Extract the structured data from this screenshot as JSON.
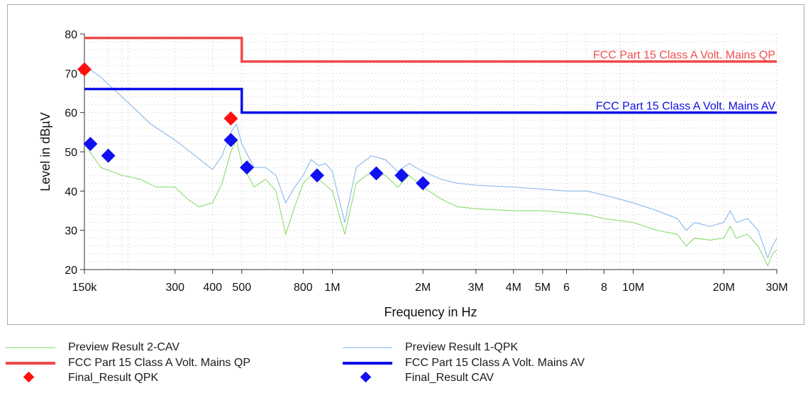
{
  "chart_data": {
    "type": "line",
    "x_scale": "log",
    "xlim_hz": [
      150000,
      30000000
    ],
    "ylim": [
      20,
      80
    ],
    "xlabel": "Frequency in Hz",
    "ylabel": "Level in dBµV",
    "grid": true,
    "y_ticks": [
      20,
      30,
      40,
      50,
      60,
      70,
      80
    ],
    "x_ticks": [
      {
        "hz": 150000,
        "label": "150k"
      },
      {
        "hz": 300000,
        "label": "300"
      },
      {
        "hz": 400000,
        "label": "400"
      },
      {
        "hz": 500000,
        "label": "500"
      },
      {
        "hz": 800000,
        "label": "800"
      },
      {
        "hz": 1000000,
        "label": "1M"
      },
      {
        "hz": 2000000,
        "label": "2M"
      },
      {
        "hz": 3000000,
        "label": "3M"
      },
      {
        "hz": 4000000,
        "label": "4M"
      },
      {
        "hz": 5000000,
        "label": "5M"
      },
      {
        "hz": 6000000,
        "label": "6"
      },
      {
        "hz": 8000000,
        "label": "8"
      },
      {
        "hz": 10000000,
        "label": "10M"
      },
      {
        "hz": 20000000,
        "label": "20M"
      },
      {
        "hz": 30000000,
        "label": "30M"
      }
    ],
    "limit_labels": [
      {
        "series": "qp_limit",
        "text": "FCC Part 15 Class A Volt. Mains QP",
        "color": "#f05050"
      },
      {
        "series": "av_limit",
        "text": "FCC Part 15 Class A Volt. Mains AV",
        "color": "#1010e0"
      }
    ],
    "series": {
      "qp_limit": {
        "name": "FCC Part 15 Class A Volt. Mains QP",
        "color": "#f04848",
        "points": [
          [
            150000,
            79
          ],
          [
            500000,
            79
          ],
          [
            500000,
            73
          ],
          [
            30000000,
            73
          ]
        ]
      },
      "av_limit": {
        "name": "FCC Part 15 Class A Volt. Mains AV",
        "color": "#0a10e8",
        "points": [
          [
            150000,
            66
          ],
          [
            500000,
            66
          ],
          [
            500000,
            60
          ],
          [
            30000000,
            60
          ]
        ]
      },
      "preview_qpk": {
        "name": "Preview Result 1-QPK",
        "color": "#7fb2e8",
        "points": [
          [
            150000,
            72
          ],
          [
            170000,
            69
          ],
          [
            200000,
            64
          ],
          [
            250000,
            57
          ],
          [
            300000,
            53
          ],
          [
            350000,
            49
          ],
          [
            400000,
            45.5
          ],
          [
            430000,
            49
          ],
          [
            460000,
            55
          ],
          [
            480000,
            57
          ],
          [
            500000,
            52
          ],
          [
            550000,
            46
          ],
          [
            600000,
            46
          ],
          [
            650000,
            44
          ],
          [
            700000,
            37
          ],
          [
            750000,
            41
          ],
          [
            800000,
            44
          ],
          [
            850000,
            48
          ],
          [
            900000,
            46.5
          ],
          [
            950000,
            47
          ],
          [
            1000000,
            45
          ],
          [
            1100000,
            32
          ],
          [
            1200000,
            46
          ],
          [
            1350000,
            49
          ],
          [
            1500000,
            48
          ],
          [
            1650000,
            45
          ],
          [
            1800000,
            47
          ],
          [
            2000000,
            45
          ],
          [
            2300000,
            43
          ],
          [
            2600000,
            42
          ],
          [
            3000000,
            41.5
          ],
          [
            4000000,
            41
          ],
          [
            5000000,
            40.5
          ],
          [
            6000000,
            40
          ],
          [
            7000000,
            40
          ],
          [
            8000000,
            39
          ],
          [
            10000000,
            37
          ],
          [
            12000000,
            35
          ],
          [
            14000000,
            33
          ],
          [
            15000000,
            30
          ],
          [
            16000000,
            32
          ],
          [
            18000000,
            31
          ],
          [
            20000000,
            32
          ],
          [
            21000000,
            35
          ],
          [
            22000000,
            32
          ],
          [
            24000000,
            33
          ],
          [
            26000000,
            30
          ],
          [
            28000000,
            23
          ],
          [
            29000000,
            26
          ],
          [
            30000000,
            28
          ]
        ]
      },
      "preview_cav": {
        "name": "Preview Result 2-CAV",
        "color": "#7fd860",
        "points": [
          [
            150000,
            52
          ],
          [
            170000,
            46
          ],
          [
            200000,
            44
          ],
          [
            230000,
            43
          ],
          [
            260000,
            41
          ],
          [
            300000,
            41
          ],
          [
            330000,
            38
          ],
          [
            360000,
            36
          ],
          [
            400000,
            37
          ],
          [
            430000,
            42
          ],
          [
            460000,
            50
          ],
          [
            480000,
            53
          ],
          [
            500000,
            47
          ],
          [
            550000,
            41
          ],
          [
            600000,
            43
          ],
          [
            650000,
            40
          ],
          [
            700000,
            29
          ],
          [
            750000,
            36
          ],
          [
            800000,
            42
          ],
          [
            850000,
            44
          ],
          [
            900000,
            43
          ],
          [
            1000000,
            40
          ],
          [
            1100000,
            29
          ],
          [
            1200000,
            42
          ],
          [
            1350000,
            45
          ],
          [
            1500000,
            44
          ],
          [
            1650000,
            41
          ],
          [
            1800000,
            44
          ],
          [
            2000000,
            41
          ],
          [
            2300000,
            38
          ],
          [
            2600000,
            36
          ],
          [
            3000000,
            35.5
          ],
          [
            4000000,
            35
          ],
          [
            5000000,
            35
          ],
          [
            6000000,
            34.5
          ],
          [
            7000000,
            34
          ],
          [
            8000000,
            33
          ],
          [
            10000000,
            32
          ],
          [
            12000000,
            30
          ],
          [
            14000000,
            29
          ],
          [
            15000000,
            26
          ],
          [
            16000000,
            28
          ],
          [
            18000000,
            27.5
          ],
          [
            20000000,
            28
          ],
          [
            21000000,
            31
          ],
          [
            22000000,
            28
          ],
          [
            24000000,
            29
          ],
          [
            26000000,
            26
          ],
          [
            28000000,
            21
          ],
          [
            29000000,
            24
          ],
          [
            30000000,
            25
          ]
        ]
      },
      "final_qpk": {
        "name": "Final_Result QPK",
        "color": "#ff1010",
        "marker": "diamond",
        "points": [
          [
            150000,
            71
          ],
          [
            460000,
            58.5
          ]
        ]
      },
      "final_cav": {
        "name": "Final_Result CAV",
        "color": "#1010f0",
        "marker": "diamond",
        "points": [
          [
            157000,
            52
          ],
          [
            180000,
            49
          ],
          [
            460000,
            53
          ],
          [
            520000,
            46
          ],
          [
            890000,
            44
          ],
          [
            1400000,
            44.5
          ],
          [
            1700000,
            44
          ],
          [
            2000000,
            42
          ]
        ]
      }
    }
  },
  "legend": [
    {
      "key": "preview_cav",
      "label": "Preview Result 2-CAV",
      "style": "thin",
      "color": "#7fd860"
    },
    {
      "key": "preview_qpk",
      "label": "Preview Result 1-QPK",
      "style": "thin",
      "color": "#7fb2e8"
    },
    {
      "key": "qp_limit",
      "label": "FCC Part 15 Class A Volt. Mains QP",
      "style": "thick",
      "color": "#f04848"
    },
    {
      "key": "av_limit",
      "label": "FCC Part 15 Class A Volt. Mains AV",
      "style": "thick",
      "color": "#0a10e8"
    },
    {
      "key": "final_qpk",
      "label": "Final_Result QPK",
      "style": "diamond",
      "color": "#ff1010"
    },
    {
      "key": "final_cav",
      "label": "Final_Result CAV",
      "style": "diamond",
      "color": "#1010f0"
    }
  ]
}
